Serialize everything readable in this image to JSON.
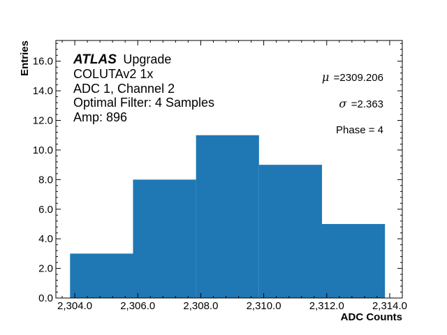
{
  "chart_data": {
    "type": "bar",
    "bin_edges": [
      2303.85,
      2305.85,
      2307.85,
      2309.85,
      2311.85,
      2313.85
    ],
    "values": [
      3,
      8,
      11,
      9,
      5
    ],
    "bar_color": "#1f77b4",
    "xlim": [
      2303.4,
      2314.4
    ],
    "ylim": [
      0,
      17.4
    ],
    "x_ticks": [
      2304,
      2306,
      2308,
      2310,
      2312,
      2314
    ],
    "x_tick_labels": [
      "2,304.0",
      "2,306.0",
      "2,308.0",
      "2,310.0",
      "2,312.0",
      "2,314.0"
    ],
    "x_minor_step": 0.4,
    "y_ticks": [
      0,
      2,
      4,
      6,
      8,
      10,
      12,
      14,
      16
    ],
    "y_tick_labels": [
      "0.0",
      "2.0",
      "4.0",
      "6.0",
      "8.0",
      "10.0",
      "12.0",
      "14.0",
      "16.0"
    ],
    "y_minor_step": 0.4,
    "xlabel": "ADC Counts",
    "ylabel": "Entries",
    "grid": false,
    "annotations": {
      "atlas": "ATLAS",
      "atlas_suffix": "Upgrade",
      "left_lines": [
        "COLUTAv2 1x",
        "ADC 1, Channel 2",
        "Optimal Filter: 4 Samples",
        "Amp: 896"
      ],
      "mu_symbol": "μ",
      "mu_value": "=2309.206",
      "sigma_symbol": "σ",
      "sigma_value": "=2.363",
      "phase": "Phase = 4"
    }
  }
}
